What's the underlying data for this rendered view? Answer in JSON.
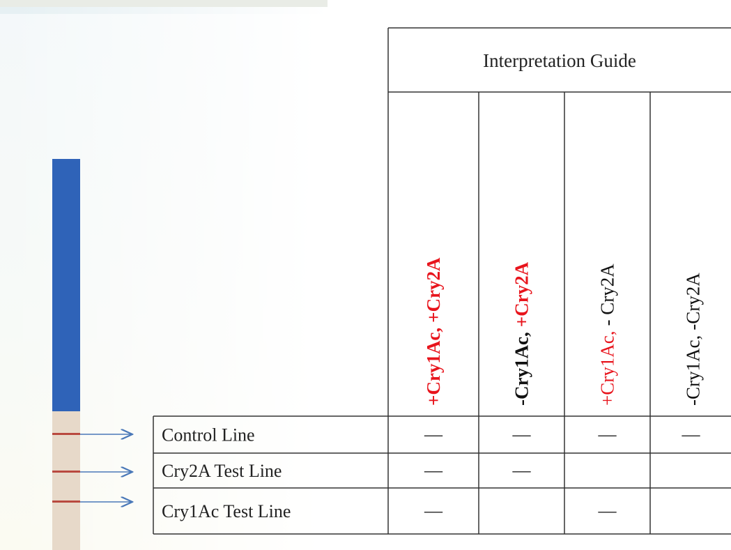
{
  "guide": {
    "title": "Interpretation Guide",
    "columns": [
      {
        "parts": [
          {
            "text": "+Cry1Ac,",
            "color": "#e8141c",
            "bold": true
          },
          {
            "text": "+Cry2A",
            "color": "#e8141c",
            "bold": true
          }
        ]
      },
      {
        "parts": [
          {
            "text": "-Cry1Ac,",
            "color": "#111111",
            "bold": true
          },
          {
            "text": "+Cry2A",
            "color": "#e8141c",
            "bold": true
          }
        ]
      },
      {
        "parts": [
          {
            "text": "+Cry1Ac,",
            "color": "#e8141c",
            "bold": false
          },
          {
            "text": "- Cry2A",
            "color": "#111111",
            "bold": false
          }
        ]
      },
      {
        "parts": [
          {
            "text": "-Cry1Ac,",
            "color": "#111111",
            "bold": false
          },
          {
            "text": "-Cry2A",
            "color": "#111111",
            "bold": false
          }
        ]
      }
    ],
    "rows": [
      {
        "label": "Control Line",
        "cells": [
          "—",
          "—",
          "—",
          "—"
        ]
      },
      {
        "label": "Cry2A Test Line",
        "cells": [
          "—",
          "—",
          null,
          null
        ]
      },
      {
        "label": "Cry1Ac Test Line",
        "cells": [
          "—",
          null,
          "—",
          null
        ]
      }
    ]
  }
}
